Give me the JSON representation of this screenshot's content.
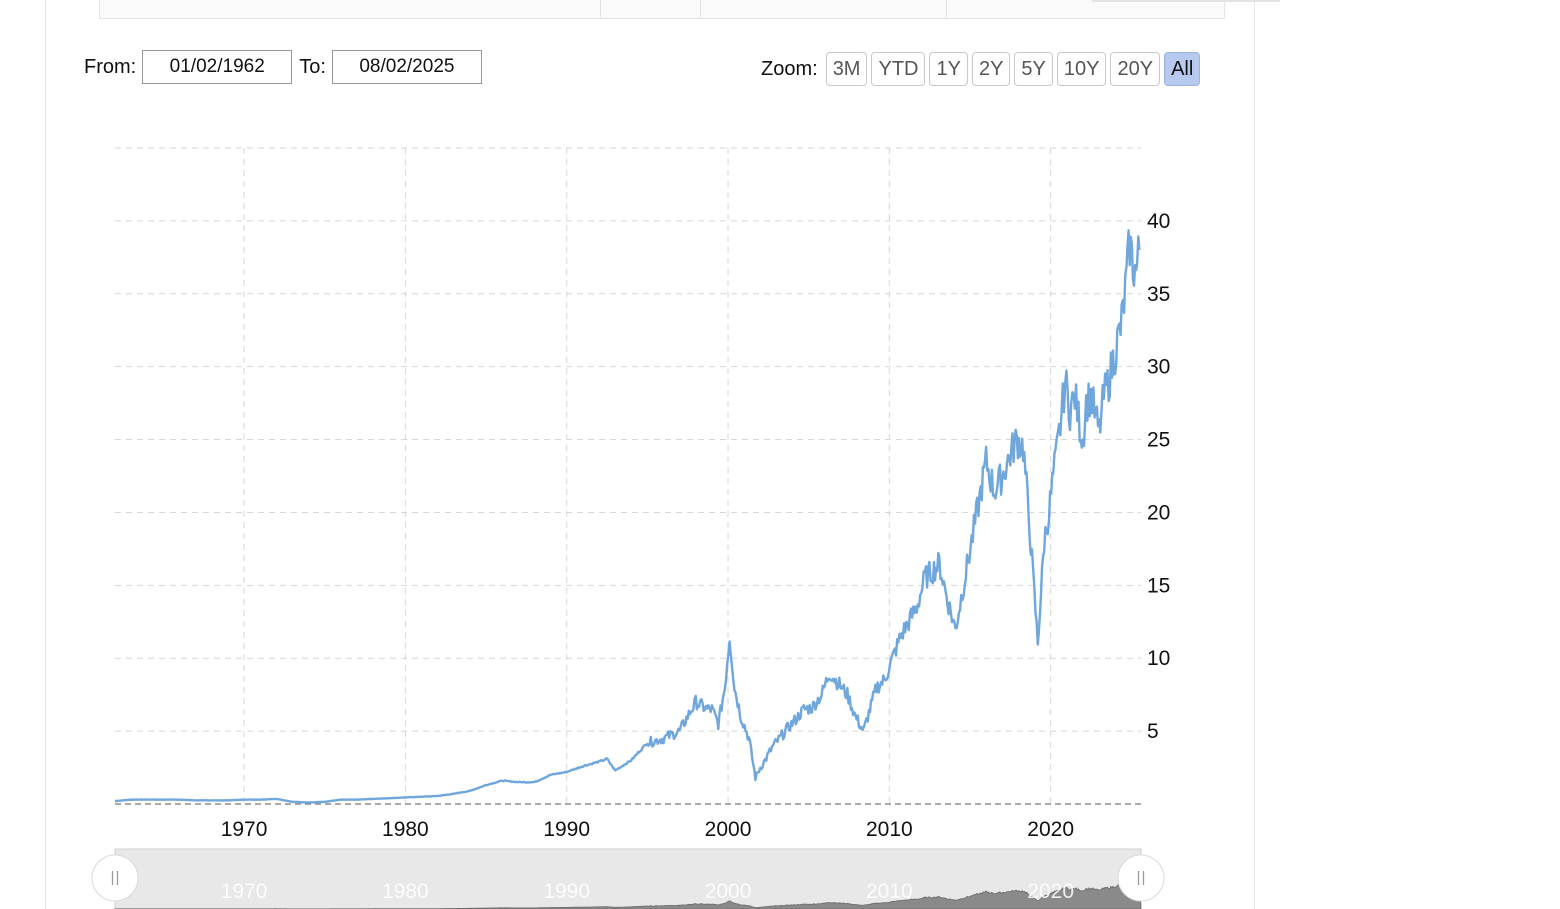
{
  "range_selector": {
    "from_label": "From:",
    "from_value": "01/02/1962",
    "to_label": "To:",
    "to_value": "08/02/2025"
  },
  "zoom": {
    "label": "Zoom:",
    "buttons": [
      "3M",
      "YTD",
      "1Y",
      "2Y",
      "5Y",
      "10Y",
      "20Y",
      "All"
    ],
    "active": "All"
  },
  "colors": {
    "series": "#6fa6dc",
    "grid": "#d6d6d6",
    "navigator_fill": "#8a8a8a",
    "navigator_bg": "#e8e8e8",
    "zoom_active": "#b7c9ef"
  },
  "chart_data": {
    "type": "line",
    "title": "",
    "xlabel": "",
    "ylabel": "",
    "xlim": [
      1962.0,
      2025.6
    ],
    "ylim": [
      0,
      45
    ],
    "x_ticks": [
      1970,
      1980,
      1990,
      2000,
      2010,
      2020
    ],
    "y_ticks": [
      5,
      10,
      15,
      20,
      25,
      30,
      35,
      40
    ],
    "y_axis_position": "right",
    "grid": true,
    "legend": "none",
    "navigator_ticks": [
      1970,
      1980,
      1990,
      2000,
      2010,
      2020
    ],
    "series": [
      {
        "x": [
          1962.0,
          1963.0,
          1964.0,
          1965.0,
          1966.0,
          1967.0,
          1968.0,
          1969.0,
          1970.0,
          1971.0,
          1972.0,
          1973.0,
          1974.0,
          1975.0,
          1976.0,
          1977.0,
          1978.0,
          1979.0,
          1980.0,
          1981.0,
          1982.0,
          1983.0,
          1984.0,
          1985.0,
          1986.0,
          1987.0,
          1988.0,
          1989.0,
          1990.0,
          1991.0,
          1992.0,
          1992.5,
          1993.0,
          1994.0,
          1995.0,
          1996.0,
          1997.0,
          1998.0,
          1998.7,
          1999.0,
          1999.4,
          1999.8,
          2000.1,
          2000.4,
          2000.8,
          2001.3,
          2001.7,
          2002.0,
          2002.3,
          2002.8,
          2003.2,
          2003.7,
          2004.2,
          2004.7,
          2005.2,
          2005.8,
          2006.3,
          2006.9,
          2007.4,
          2007.9,
          2008.4,
          2008.8,
          2009.2,
          2009.7,
          2010.2,
          2010.7,
          2011.2,
          2011.7,
          2012.2,
          2012.7,
          2013.1,
          2013.6,
          2014.1,
          2014.6,
          2015.1,
          2015.6,
          2016.0,
          2016.5,
          2017.0,
          2017.5,
          2017.9,
          2018.3,
          2018.7,
          2019.2,
          2019.6,
          2019.9,
          2020.1,
          2020.3,
          2020.6,
          2020.9,
          2021.2,
          2021.5,
          2021.8,
          2022.0,
          2022.2,
          2022.5,
          2022.8,
          2023.0,
          2023.3,
          2023.6,
          2024.0,
          2024.4,
          2024.7,
          2024.9,
          2025.1,
          2025.3,
          2025.5
        ],
        "y": [
          0.2,
          0.3,
          0.3,
          0.3,
          0.3,
          0.25,
          0.25,
          0.25,
          0.3,
          0.3,
          0.35,
          0.15,
          0.1,
          0.15,
          0.3,
          0.3,
          0.35,
          0.4,
          0.45,
          0.5,
          0.55,
          0.7,
          0.9,
          1.3,
          1.6,
          1.5,
          1.5,
          2.0,
          2.2,
          2.6,
          2.9,
          3.1,
          2.3,
          3.0,
          4.2,
          4.5,
          5.0,
          7.0,
          6.5,
          6.5,
          5.5,
          8.0,
          11.5,
          8.0,
          6.0,
          4.5,
          1.8,
          2.5,
          3.0,
          4.0,
          4.5,
          5.2,
          5.8,
          6.5,
          6.6,
          7.5,
          9.0,
          8.2,
          7.5,
          6.0,
          5.0,
          6.5,
          8.0,
          8.5,
          10.0,
          11.5,
          12.5,
          13.5,
          15.5,
          16.0,
          16.5,
          14.0,
          12.0,
          15.0,
          18.0,
          21.0,
          23.5,
          21.5,
          22.5,
          24.0,
          25.0,
          24.5,
          19.0,
          11.0,
          18.0,
          20.0,
          22.0,
          23.5,
          26.0,
          29.0,
          27.0,
          28.0,
          26.0,
          25.0,
          27.5,
          28.0,
          26.5,
          25.5,
          28.0,
          29.0,
          31.0,
          33.0,
          36.0,
          38.5,
          37.0,
          36.5,
          38.0
        ]
      }
    ]
  }
}
